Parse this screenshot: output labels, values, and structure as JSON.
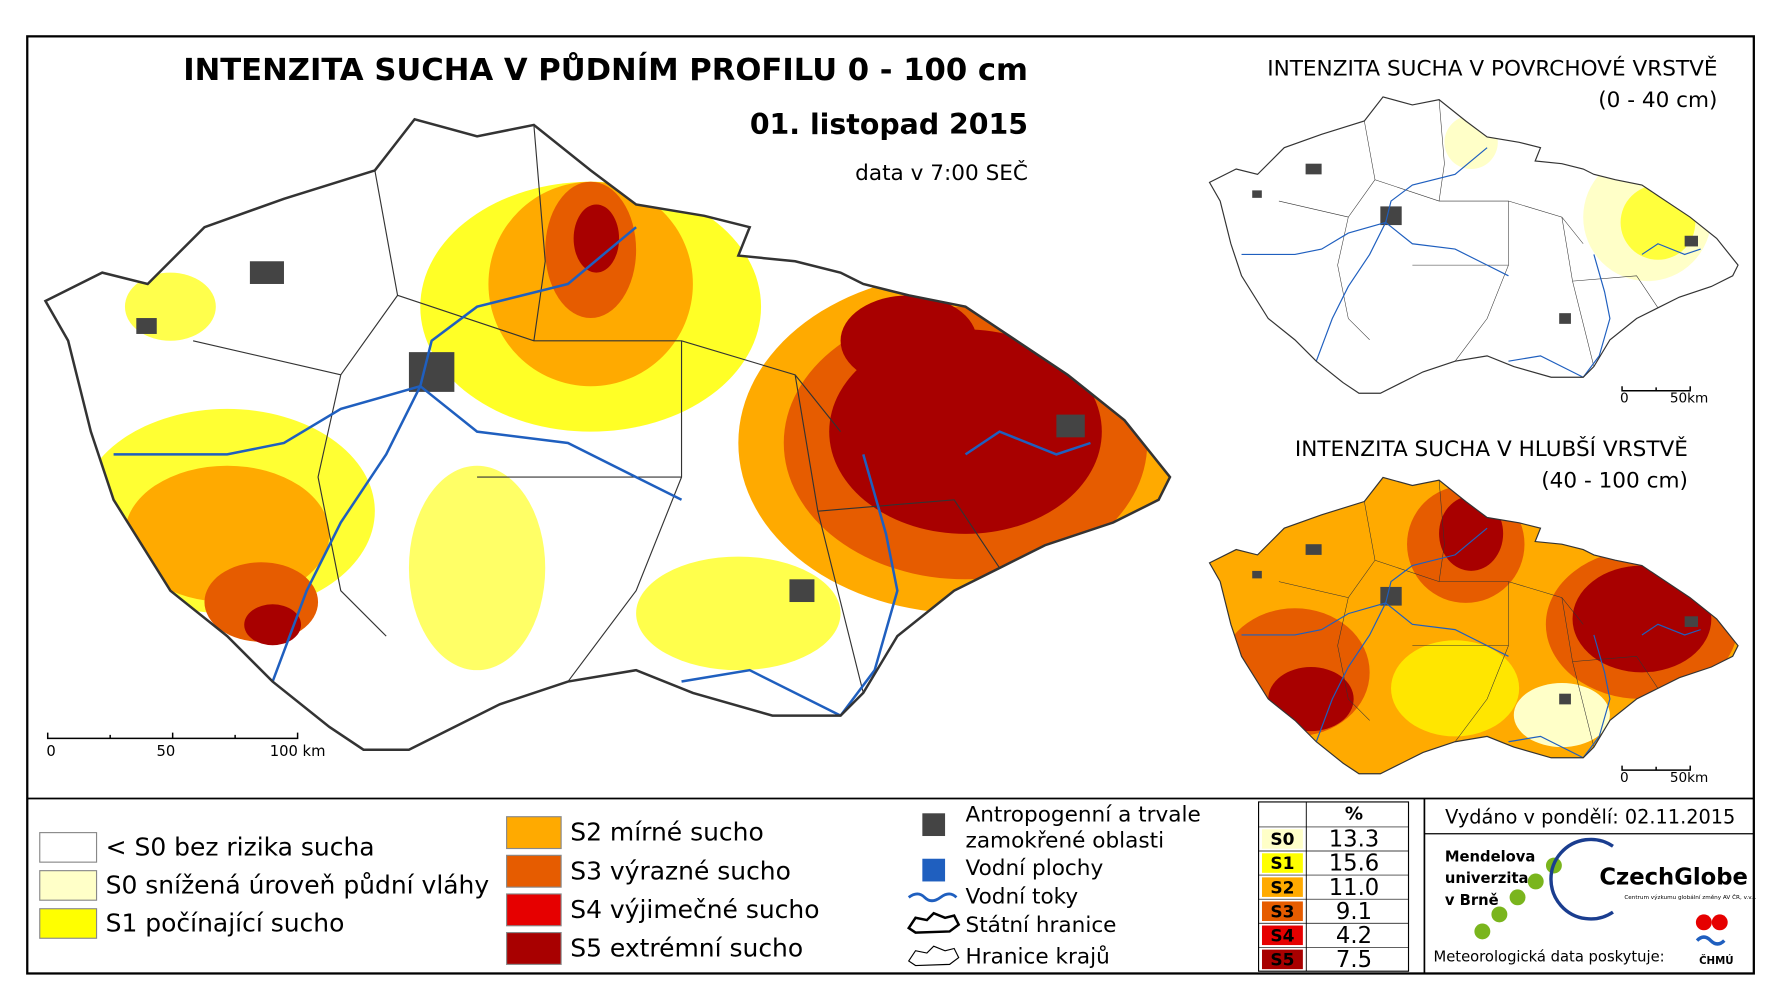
{
  "main_map": {
    "title": "INTENZITA SUCHA V PŮDNÍM PROFILU 0 - 100 cm",
    "date": "01. listopad 2015",
    "time_note": "data v 7:00 SEČ",
    "scale": [
      "0",
      "50",
      "100 km"
    ]
  },
  "inset_maps": [
    {
      "title": "INTENZITA SUCHA V POVRCHOVÉ VRSTVĚ",
      "subtitle": "(0 - 40 cm)",
      "scale": [
        "0",
        "50km"
      ]
    },
    {
      "title": "INTENZITA SUCHA V HLUBŠÍ VRSTVĚ",
      "subtitle": "(40 - 100 cm)",
      "scale": [
        "0",
        "50km"
      ]
    }
  ],
  "legend": {
    "classes": [
      {
        "label": "< S0 bez rizika sucha",
        "color": "#ffffff"
      },
      {
        "label": "S0 snížená úroveň půdní vláhy",
        "color": "#ffffc8"
      },
      {
        "label": "S1 počínající sucho",
        "color": "#ffff00"
      },
      {
        "label": "S2 mírné sucho",
        "color": "#ffaa00"
      },
      {
        "label": "S3 výrazné sucho",
        "color": "#e65c00"
      },
      {
        "label": "S4 výjimečné sucho",
        "color": "#e60000"
      },
      {
        "label": "S5 extrémní sucho",
        "color": "#a80000"
      }
    ],
    "features": [
      {
        "lines": [
          "Antropogenní a trvale",
          "zamokřené oblasti"
        ]
      },
      {
        "lines": [
          "Vodní plochy"
        ]
      },
      {
        "lines": [
          "Vodní toky"
        ]
      },
      {
        "lines": [
          "Státní hranice"
        ]
      },
      {
        "lines": [
          "Hranice krajů"
        ]
      }
    ]
  },
  "stats": {
    "header": "%",
    "rows": [
      {
        "class": "S0",
        "percent": "13.3",
        "color": "#ffffc8"
      },
      {
        "class": "S1",
        "percent": "15.6",
        "color": "#ffff00"
      },
      {
        "class": "S2",
        "percent": "11.0",
        "color": "#ffaa00"
      },
      {
        "class": "S3",
        "percent": "9.1",
        "color": "#e65c00"
      },
      {
        "class": "S4",
        "percent": "4.2",
        "color": "#e60000"
      },
      {
        "class": "S5",
        "percent": "7.5",
        "color": "#a80000"
      }
    ]
  },
  "issued": "Vydáno v pondělí: 02.11.2015",
  "logos": {
    "mendel": [
      "Mendelova",
      "univerzita",
      "v Brně"
    ],
    "czechglobe": "CzechGlobe",
    "czechglobe_sub": "Centrum výzkumu globální změny AV ČR, v.v.i.",
    "provider": "Meteorologická data poskytuje:",
    "chmu": "ČHMÚ"
  }
}
